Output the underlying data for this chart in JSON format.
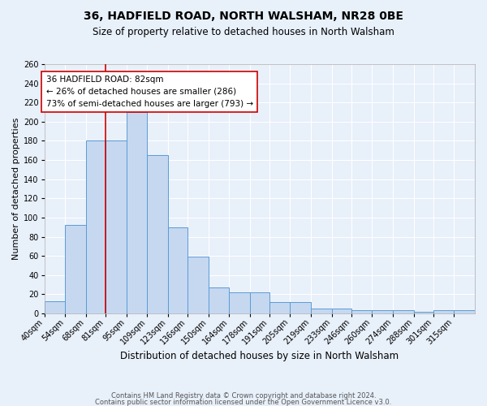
{
  "title": "36, HADFIELD ROAD, NORTH WALSHAM, NR28 0BE",
  "subtitle": "Size of property relative to detached houses in North Walsham",
  "xlabel": "Distribution of detached houses by size in North Walsham",
  "ylabel": "Number of detached properties",
  "bin_labels": [
    "40sqm",
    "54sqm",
    "68sqm",
    "81sqm",
    "95sqm",
    "109sqm",
    "123sqm",
    "136sqm",
    "150sqm",
    "164sqm",
    "178sqm",
    "191sqm",
    "205sqm",
    "219sqm",
    "233sqm",
    "246sqm",
    "260sqm",
    "274sqm",
    "288sqm",
    "301sqm",
    "315sqm"
  ],
  "bin_edges": [
    40,
    54,
    68,
    81,
    95,
    109,
    123,
    136,
    150,
    164,
    178,
    191,
    205,
    219,
    233,
    246,
    260,
    274,
    288,
    301,
    315,
    329
  ],
  "bar_values": [
    13,
    92,
    180,
    180,
    210,
    165,
    90,
    59,
    27,
    22,
    22,
    12,
    12,
    5,
    5,
    3,
    3,
    3,
    2,
    3,
    3
  ],
  "bar_color": "#c5d8f0",
  "bar_edge_color": "#5b9bd5",
  "vline_x": 81,
  "vline_color": "#cc0000",
  "annotation_text": "36 HADFIELD ROAD: 82sqm\n← 26% of detached houses are smaller (286)\n73% of semi-detached houses are larger (793) →",
  "annotation_box_color": "#ffffff",
  "annotation_box_edge": "#cc0000",
  "ylim": [
    0,
    260
  ],
  "yticks": [
    0,
    20,
    40,
    60,
    80,
    100,
    120,
    140,
    160,
    180,
    200,
    220,
    240,
    260
  ],
  "footer1": "Contains HM Land Registry data © Crown copyright and database right 2024.",
  "footer2": "Contains public sector information licensed under the Open Government Licence v3.0.",
  "background_color": "#e8f0fa",
  "grid_color": "#ffffff",
  "title_fontsize": 10,
  "subtitle_fontsize": 8.5,
  "xlabel_fontsize": 8.5,
  "ylabel_fontsize": 8,
  "tick_fontsize": 7,
  "annotation_fontsize": 7.5,
  "footer_fontsize": 6
}
